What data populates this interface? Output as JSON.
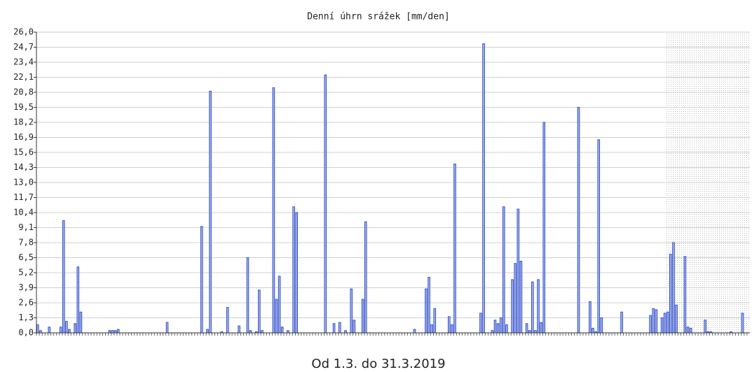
{
  "chart_data": {
    "type": "bar",
    "title": "Denní úhrn srážek [mm/den]",
    "caption": "Od 1.3. do 31.3.2019",
    "color": "#aab8f0",
    "edge_color": "#3350c8",
    "grid": true,
    "ylim": [
      0,
      26
    ],
    "yticks": [
      {
        "value": 0,
        "label": "0,0"
      },
      {
        "value": 1.3,
        "label": "1,3"
      },
      {
        "value": 2.6,
        "label": "2,6"
      },
      {
        "value": 3.9,
        "label": "3,9"
      },
      {
        "value": 5.2,
        "label": "5,2"
      },
      {
        "value": 6.5,
        "label": "6,5"
      },
      {
        "value": 7.8,
        "label": "7,8"
      },
      {
        "value": 9.1,
        "label": "9,1"
      },
      {
        "value": 10.4,
        "label": "10,4"
      },
      {
        "value": 11.7,
        "label": "11,7"
      },
      {
        "value": 13,
        "label": "13,0"
      },
      {
        "value": 14.3,
        "label": "14,3"
      },
      {
        "value": 15.6,
        "label": "15,6"
      },
      {
        "value": 16.9,
        "label": "16,9"
      },
      {
        "value": 18.2,
        "label": "18,2"
      },
      {
        "value": 19.5,
        "label": "19,5"
      },
      {
        "value": 20.8,
        "label": "20,8"
      },
      {
        "value": 22.1,
        "label": "22,1"
      },
      {
        "value": 23.4,
        "label": "23,4"
      },
      {
        "value": 24.7,
        "label": "24,7"
      },
      {
        "value": 26,
        "label": "26,0"
      }
    ],
    "values": [
      0.7,
      0.2,
      0,
      0,
      0.5,
      0,
      0,
      0,
      0.5,
      9.7,
      1.0,
      0.3,
      0,
      0.8,
      5.7,
      1.8,
      0,
      0,
      0,
      0,
      0,
      0,
      0,
      0,
      0,
      0.2,
      0.2,
      0.2,
      0.3,
      0,
      0,
      0,
      0,
      0,
      0,
      0,
      0,
      0,
      0,
      0,
      0,
      0,
      0,
      0,
      0,
      0.9,
      0,
      0,
      0,
      0,
      0,
      0,
      0,
      0,
      0,
      0,
      0,
      9.2,
      0,
      0.3,
      20.9,
      0,
      0,
      0,
      0.1,
      0,
      2.2,
      0,
      0,
      0,
      0.6,
      0,
      0,
      6.5,
      0.2,
      0,
      0.1,
      3.7,
      0.2,
      0,
      0,
      0,
      21.2,
      2.9,
      4.9,
      0.5,
      0,
      0.2,
      0,
      10.9,
      10.4,
      0,
      0,
      0,
      0,
      0,
      0,
      0,
      0,
      0,
      22.3,
      0,
      0,
      0.8,
      0,
      0.9,
      0,
      0.2,
      0,
      3.8,
      1.1,
      0,
      0,
      2.9,
      9.6,
      0,
      0,
      0,
      0,
      0,
      0,
      0,
      0,
      0,
      0,
      0,
      0,
      0,
      0,
      0,
      0,
      0.3,
      0,
      0,
      0,
      3.8,
      4.8,
      0.7,
      2.1,
      0,
      0,
      0,
      0,
      1.4,
      0.7,
      14.6,
      0,
      0,
      0,
      0,
      0,
      0,
      0,
      0,
      1.7,
      25.0,
      0,
      0,
      0.2,
      1.1,
      0.8,
      1.3,
      10.9,
      0.7,
      0,
      4.6,
      6.0,
      10.7,
      6.2,
      0,
      0.8,
      0.2,
      4.4,
      0.2,
      4.6,
      0.9,
      18.2,
      0,
      0,
      0,
      0,
      0,
      0,
      0,
      0,
      0,
      0,
      0,
      19.5,
      0,
      0,
      0,
      2.7,
      0.4,
      0.1,
      16.7,
      1.3,
      0,
      0,
      0,
      0,
      0,
      0,
      1.8,
      0,
      0,
      0,
      0,
      0,
      0,
      0,
      0,
      0,
      1.5,
      2.1,
      2.0,
      0,
      1.3,
      1.7,
      1.8,
      6.8,
      7.8,
      2.4,
      0,
      0,
      6.6,
      0.5,
      0.4,
      0,
      0,
      0,
      0,
      1.1,
      0.1,
      0.1,
      0,
      0,
      0,
      0,
      0,
      0,
      0.1,
      0,
      0,
      0,
      1.7,
      0,
      0
    ]
  }
}
